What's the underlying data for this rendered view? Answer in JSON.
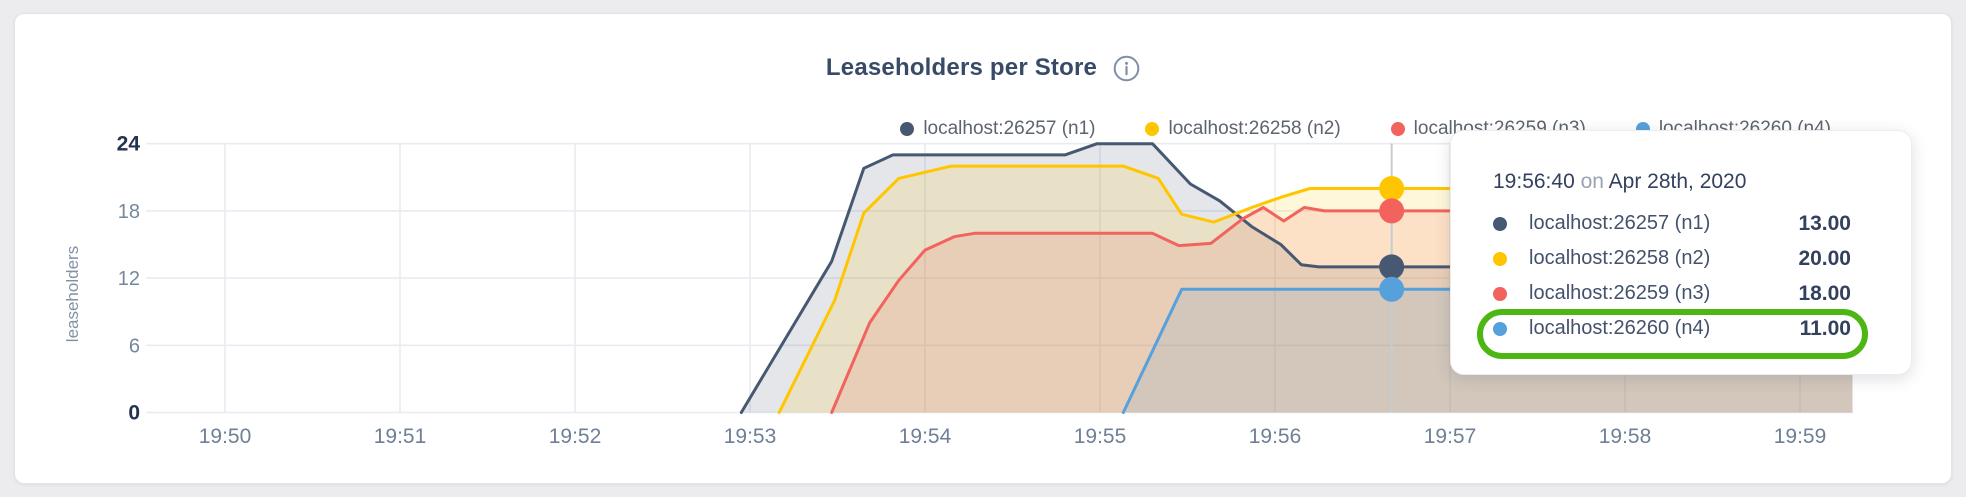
{
  "header": {
    "title": "Leaseholders per Store",
    "info_icon": "info-icon"
  },
  "chart_data": {
    "type": "area",
    "title": "Leaseholders per Store",
    "xlabel": "",
    "ylabel": "leaseholders",
    "ylim": [
      0,
      24
    ],
    "grid": true,
    "legend_position": "top-right",
    "x_ticks": [
      {
        "t": 0,
        "label": "19:50"
      },
      {
        "t": 60,
        "label": "19:51"
      },
      {
        "t": 120,
        "label": "19:52"
      },
      {
        "t": 180,
        "label": "19:53"
      },
      {
        "t": 240,
        "label": "19:54"
      },
      {
        "t": 300,
        "label": "19:55"
      },
      {
        "t": 360,
        "label": "19:56"
      },
      {
        "t": 420,
        "label": "19:57"
      },
      {
        "t": 480,
        "label": "19:58"
      },
      {
        "t": 540,
        "label": "19:59"
      }
    ],
    "y_ticks": [
      {
        "v": 0,
        "label": "0",
        "bold": true
      },
      {
        "v": 6,
        "label": "6",
        "bold": false
      },
      {
        "v": 12,
        "label": "12",
        "bold": false
      },
      {
        "v": 18,
        "label": "18",
        "bold": false
      },
      {
        "v": 24,
        "label": "24",
        "bold": true
      }
    ],
    "series": [
      {
        "name": "localhost:26257 (n1)",
        "color": "#475872",
        "points": [
          [
            177,
            0
          ],
          [
            208,
            13.5
          ],
          [
            219,
            21.8
          ],
          [
            229,
            23
          ],
          [
            288,
            23
          ],
          [
            299,
            24
          ],
          [
            318,
            24
          ],
          [
            331,
            20.4
          ],
          [
            341,
            18.9
          ],
          [
            352,
            16.6
          ],
          [
            362,
            15
          ],
          [
            369,
            13.2
          ],
          [
            375,
            13
          ],
          [
            558,
            13
          ]
        ]
      },
      {
        "name": "localhost:26258 (n2)",
        "color": "#ffc600",
        "points": [
          [
            190,
            0
          ],
          [
            209,
            10
          ],
          [
            219,
            17.8
          ],
          [
            231,
            20.9
          ],
          [
            249,
            22
          ],
          [
            308,
            22
          ],
          [
            320,
            20.9
          ],
          [
            328,
            17.7
          ],
          [
            339,
            17
          ],
          [
            352,
            18.3
          ],
          [
            363,
            19.3
          ],
          [
            372,
            20
          ],
          [
            558,
            20
          ]
        ]
      },
      {
        "name": "localhost:26259 (n3)",
        "color": "#f2635e",
        "points": [
          [
            208,
            0
          ],
          [
            221,
            8
          ],
          [
            231,
            11.8
          ],
          [
            240,
            14.5
          ],
          [
            250,
            15.7
          ],
          [
            257,
            16
          ],
          [
            318,
            16
          ],
          [
            327,
            14.9
          ],
          [
            338,
            15.1
          ],
          [
            349,
            17.3
          ],
          [
            356,
            18.3
          ],
          [
            363,
            17.1
          ],
          [
            370,
            18.3
          ],
          [
            377,
            18
          ],
          [
            558,
            18
          ]
        ]
      },
      {
        "name": "localhost:26260 (n4)",
        "color": "#56a1dc",
        "points": [
          [
            308,
            0
          ],
          [
            328,
            11
          ],
          [
            558,
            11
          ]
        ]
      }
    ],
    "hover": {
      "t": 400,
      "time_label": "19:56:40",
      "date_label": "Apr 28th, 2020",
      "values": [
        13,
        20,
        18,
        11
      ]
    }
  },
  "tooltip": {
    "time": "19:56:40",
    "on": "on",
    "date": "Apr 28th, 2020",
    "rows": [
      {
        "label": "localhost:26257 (n1)",
        "value": "13.00",
        "color": "#475872"
      },
      {
        "label": "localhost:26258 (n2)",
        "value": "20.00",
        "color": "#ffc600"
      },
      {
        "label": "localhost:26259 (n3)",
        "value": "18.00",
        "color": "#f2635e"
      },
      {
        "label": "localhost:26260 (n4)",
        "value": "11.00",
        "color": "#56a1dc"
      }
    ],
    "annotation": {
      "highlighted_row_index": 3,
      "highlighted_series": "localhost:26260 (n4)",
      "color": "#4db613"
    }
  }
}
